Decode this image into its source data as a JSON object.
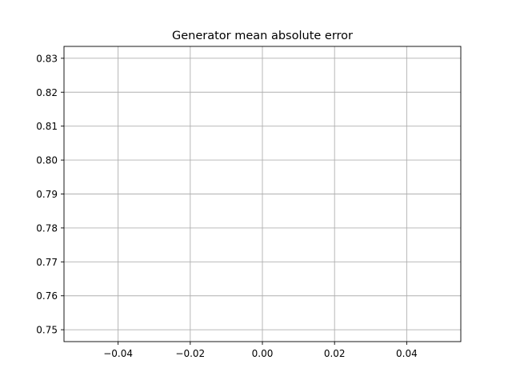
{
  "chart_data": {
    "type": "line",
    "title": "Generator mean absolute error",
    "xlabel": "",
    "ylabel": "",
    "x": [],
    "series": [
      {
        "values": []
      }
    ],
    "xlim": [
      -0.055,
      0.055
    ],
    "ylim": [
      0.7465,
      0.8335
    ],
    "x_ticks": [
      -0.04,
      -0.02,
      0.0,
      0.02,
      0.04
    ],
    "x_tick_labels": [
      "−0.04",
      "−0.02",
      "0.00",
      "0.02",
      "0.04"
    ],
    "y_ticks": [
      0.75,
      0.76,
      0.77,
      0.78,
      0.79,
      0.8,
      0.81,
      0.82,
      0.83
    ],
    "y_tick_labels": [
      "0.75",
      "0.76",
      "0.77",
      "0.78",
      "0.79",
      "0.80",
      "0.81",
      "0.82",
      "0.83"
    ],
    "grid": true,
    "legend": "none",
    "colors": {
      "grid": "#b0b0b0",
      "axes": "#000000",
      "background": "#ffffff"
    }
  }
}
